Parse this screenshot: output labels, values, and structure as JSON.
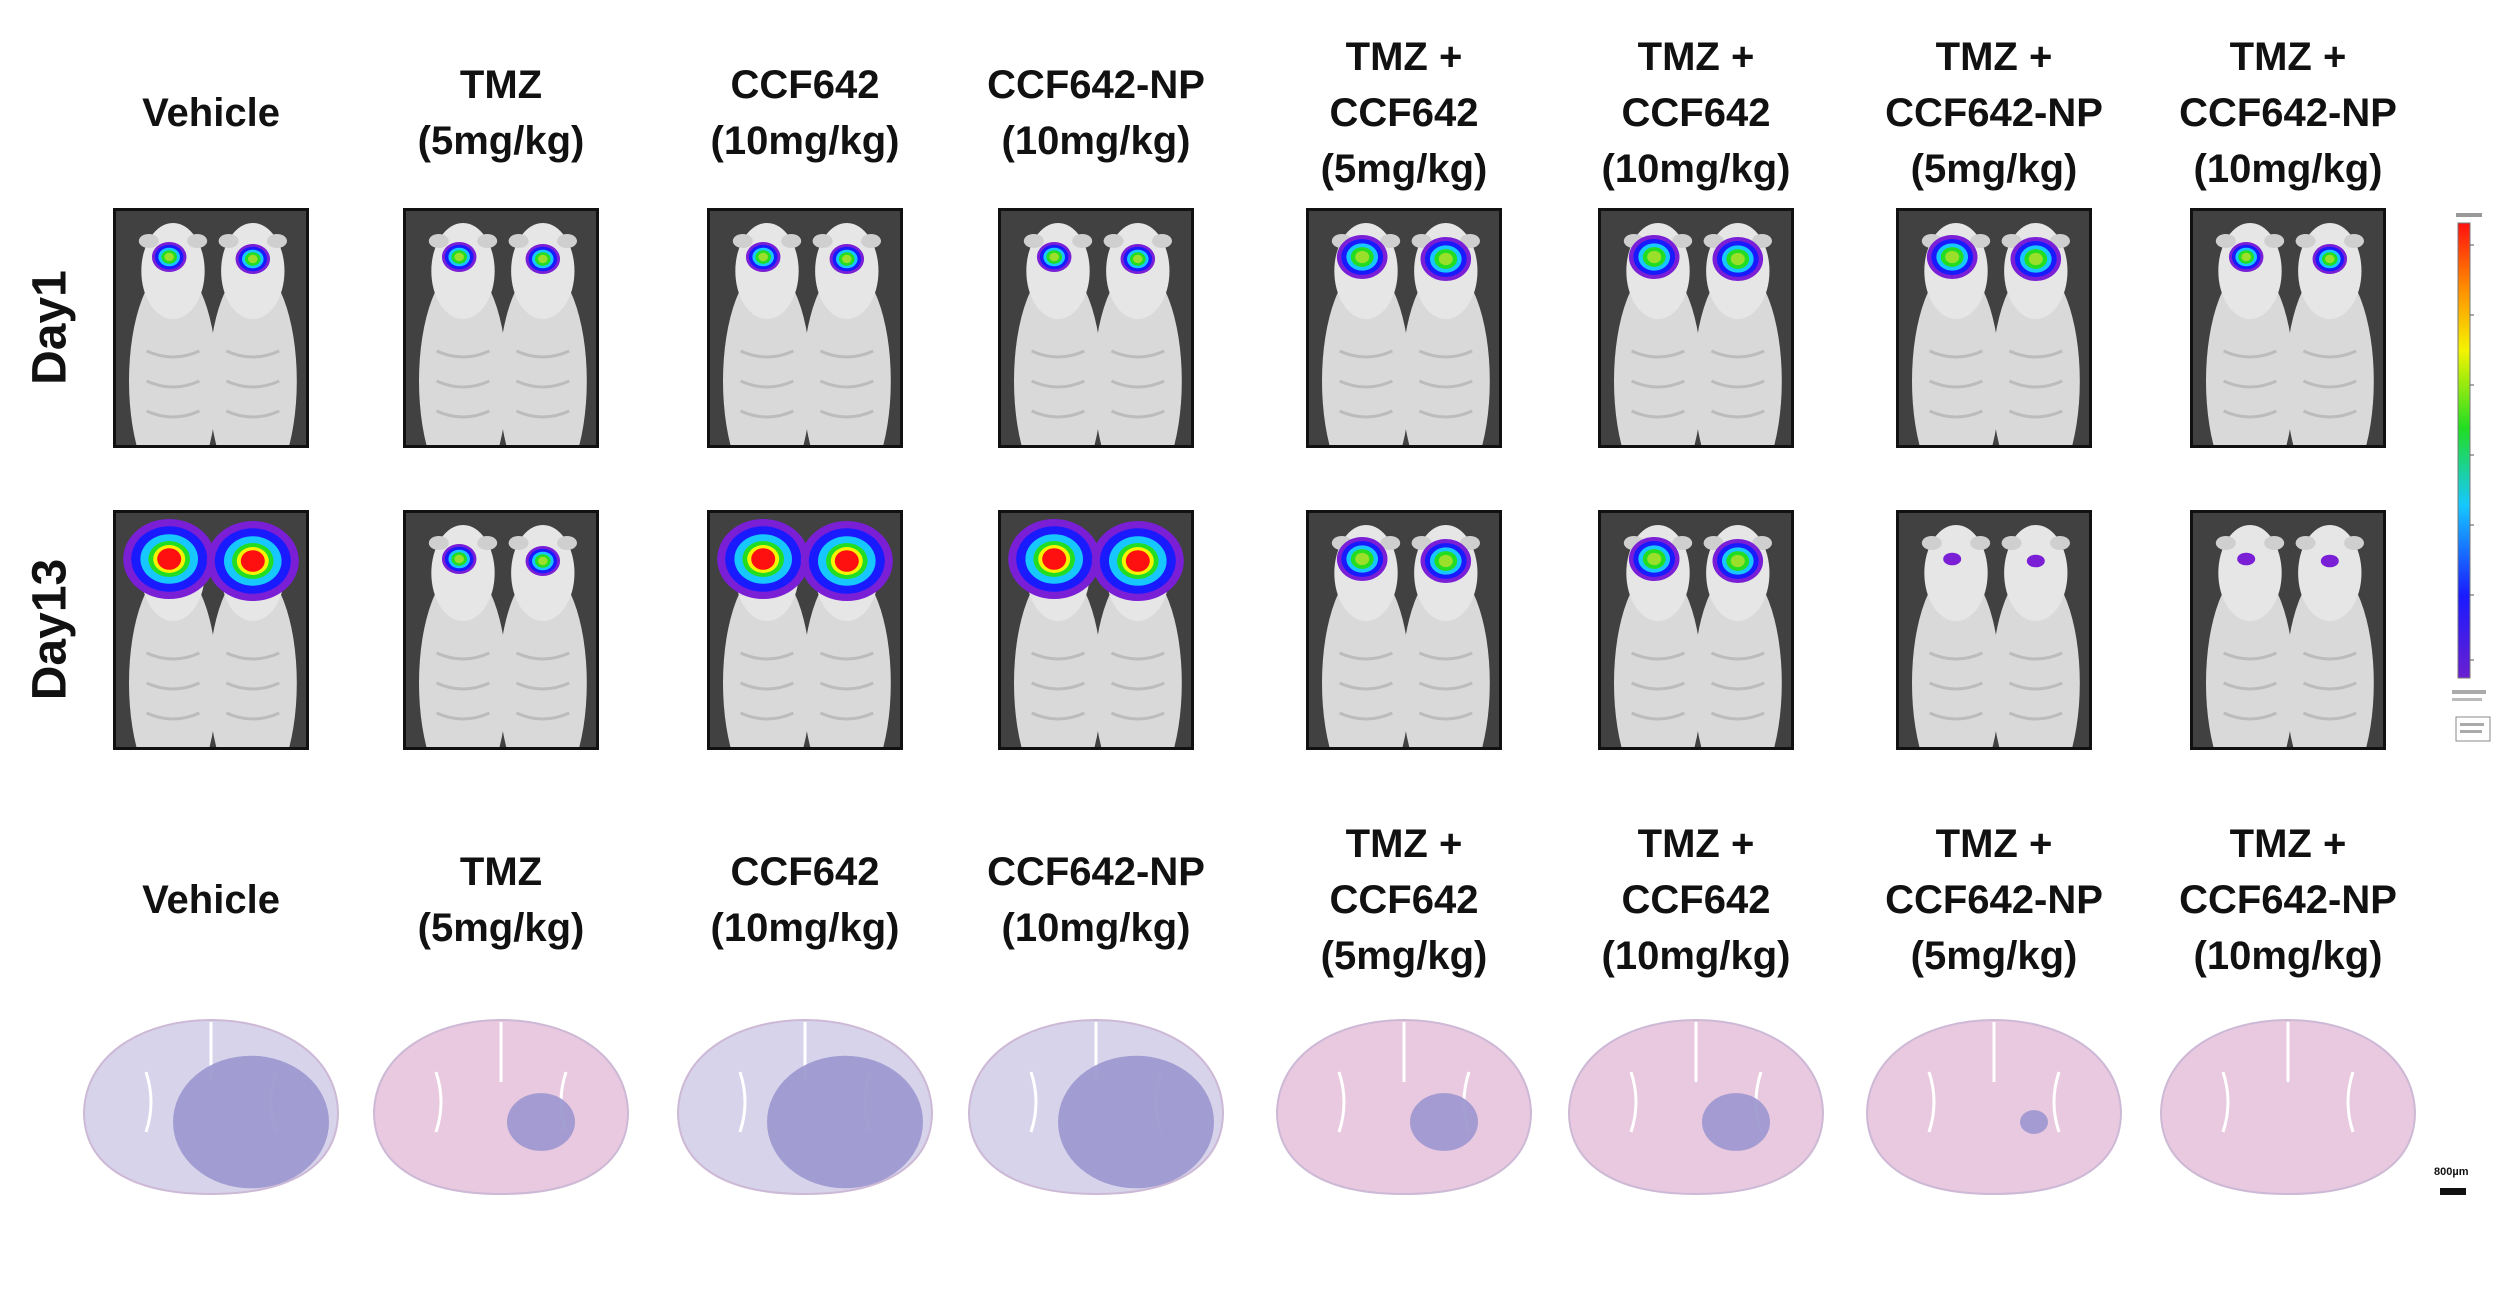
{
  "groups": [
    {
      "lines": [
        "Vehicle"
      ]
    },
    {
      "lines": [
        "TMZ",
        "(5mg/kg)"
      ]
    },
    {
      "lines": [
        "CCF642",
        "(10mg/kg)"
      ]
    },
    {
      "lines": [
        "CCF642-NP",
        "(10mg/kg)"
      ]
    },
    {
      "lines": [
        "TMZ +",
        "CCF642",
        "(5mg/kg)"
      ]
    },
    {
      "lines": [
        "TMZ +",
        "CCF642",
        "(10mg/kg)"
      ]
    },
    {
      "lines": [
        "TMZ +",
        "CCF642-NP",
        "(5mg/kg)"
      ]
    },
    {
      "lines": [
        "TMZ +",
        "CCF642-NP",
        "(10mg/kg)"
      ]
    }
  ],
  "rows": [
    {
      "label": "Day1"
    },
    {
      "label": "Day13"
    }
  ],
  "bioluminescence_signal": {
    "Day1": [
      "small",
      "small",
      "small",
      "small",
      "medium",
      "medium",
      "medium",
      "small"
    ],
    "Day13": [
      "large",
      "small",
      "large",
      "large",
      "medium",
      "medium",
      "faint",
      "faint"
    ]
  },
  "histology_tumor": [
    "large",
    "small",
    "large",
    "large",
    "small",
    "small",
    "tiny",
    "none"
  ],
  "colors": {
    "he_pink": "#e9c9df",
    "tumor_purple": "#9c97cf",
    "lum_red": "#ff1010",
    "lum_blue": "#1a1aff",
    "lum_violet": "#7a1fd6"
  },
  "scale_bar": {
    "label": "800µm"
  }
}
